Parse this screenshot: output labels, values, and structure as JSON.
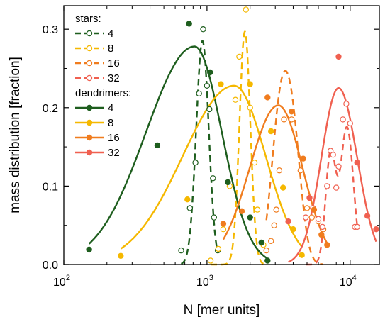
{
  "chart_data": {
    "type": "scatter",
    "xlabel": "N [mer units]",
    "ylabel": "mass distribution [fraction]",
    "xscale": "log",
    "xlim": [
      100,
      16000
    ],
    "ylim": [
      0,
      0.33
    ],
    "x_ticks": [
      {
        "value": 100,
        "base": "10",
        "exp": "2"
      },
      {
        "value": 1000,
        "base": "10",
        "exp": "3"
      },
      {
        "value": 10000,
        "base": "10",
        "exp": "4"
      }
    ],
    "y_ticks": [
      "0.0",
      "0.1",
      "0.2",
      "0.3"
    ],
    "legend": {
      "placement": "top-left",
      "group_titles": [
        "stars:",
        "dendrimers:"
      ]
    },
    "series": [
      {
        "name": "4",
        "group": "stars",
        "color": "#1e5e1e",
        "marker": "open",
        "line": "dashed",
        "points": [
          [
            660,
            0.018
          ],
          [
            760,
            0.072
          ],
          [
            830,
            0.13
          ],
          [
            880,
            0.218
          ],
          [
            940,
            0.3
          ],
          [
            1000,
            0.228
          ],
          [
            1040,
            0.198
          ],
          [
            1100,
            0.11
          ],
          [
            1120,
            0.06
          ],
          [
            1190,
            0.018
          ]
        ]
      },
      {
        "name": "8",
        "group": "stars",
        "color": "#f5b800",
        "marker": "open",
        "line": "dashed",
        "points": [
          [
            1060,
            0.005
          ],
          [
            1200,
            0.02
          ],
          [
            1300,
            0.045
          ],
          [
            1440,
            0.1
          ],
          [
            1580,
            0.21
          ],
          [
            1680,
            0.265
          ],
          [
            1870,
            0.325
          ],
          [
            2000,
            0.2
          ],
          [
            2150,
            0.13
          ],
          [
            2250,
            0.07
          ],
          [
            2480,
            0.025
          ]
        ]
      },
      {
        "name": "16",
        "group": "stars",
        "color": "#f07c1e",
        "marker": "open",
        "line": "dashed",
        "points": [
          [
            2600,
            0.018
          ],
          [
            2800,
            0.03
          ],
          [
            2950,
            0.05
          ],
          [
            3050,
            0.07
          ],
          [
            3200,
            0.12
          ],
          [
            3450,
            0.185
          ],
          [
            3900,
            0.185
          ],
          [
            4500,
            0.12
          ],
          [
            5000,
            0.072
          ],
          [
            5400,
            0.06
          ],
          [
            6000,
            0.055
          ],
          [
            6500,
            0.045
          ]
        ]
      },
      {
        "name": "32",
        "group": "stars",
        "color": "#f06050",
        "marker": "open",
        "line": "dashed",
        "points": [
          [
            4900,
            0.06
          ],
          [
            5500,
            0.072
          ],
          [
            6000,
            0.058
          ],
          [
            6400,
            0.048
          ],
          [
            6900,
            0.1
          ],
          [
            7300,
            0.145
          ],
          [
            7600,
            0.14
          ],
          [
            8000,
            0.098
          ],
          [
            8300,
            0.125
          ],
          [
            8900,
            0.185
          ],
          [
            9400,
            0.205
          ],
          [
            10000,
            0.18
          ],
          [
            10800,
            0.048
          ],
          [
            11200,
            0.048
          ]
        ]
      },
      {
        "name": "4",
        "group": "dendrimers",
        "color": "#1e5e1e",
        "marker": "filled",
        "line": "solid",
        "points": [
          [
            150,
            0.019
          ],
          [
            450,
            0.152
          ],
          [
            750,
            0.307
          ],
          [
            1050,
            0.245
          ],
          [
            1400,
            0.105
          ],
          [
            2000,
            0.06
          ],
          [
            2400,
            0.028
          ],
          [
            2650,
            0.005
          ]
        ]
      },
      {
        "name": "8",
        "group": "dendrimers",
        "color": "#f5b800",
        "marker": "filled",
        "line": "solid",
        "points": [
          [
            250,
            0.011
          ],
          [
            730,
            0.083
          ],
          [
            1250,
            0.23
          ],
          [
            2000,
            0.23
          ],
          [
            2800,
            0.17
          ],
          [
            3400,
            0.098
          ],
          [
            4000,
            0.045
          ],
          [
            4600,
            0.012
          ]
        ]
      },
      {
        "name": "16",
        "group": "dendrimers",
        "color": "#f07c1e",
        "marker": "filled",
        "line": "solid",
        "points": [
          [
            1300,
            0.052
          ],
          [
            1750,
            0.068
          ],
          [
            2650,
            0.213
          ],
          [
            3900,
            0.195
          ],
          [
            4700,
            0.135
          ],
          [
            5600,
            0.07
          ],
          [
            6300,
            0.038
          ],
          [
            6900,
            0.025
          ]
        ]
      },
      {
        "name": "32",
        "group": "dendrimers",
        "color": "#f06050",
        "marker": "filled",
        "line": "solid",
        "points": [
          [
            3700,
            0.055
          ],
          [
            5200,
            0.085
          ],
          [
            8300,
            0.265
          ],
          [
            11200,
            0.13
          ],
          [
            13200,
            0.062
          ],
          [
            15200,
            0.045
          ]
        ]
      }
    ],
    "fits": [
      {
        "group": "stars",
        "series": 0,
        "peak": 930,
        "sigma": 0.044,
        "amp": 0.285
      },
      {
        "group": "stars",
        "series": 1,
        "peak": 1840,
        "sigma": 0.038,
        "amp": 0.297
      },
      {
        "group": "stars",
        "series": 2,
        "peak": 3200,
        "sigma": 0.06,
        "amp": 0.17,
        "peak2": 3950,
        "sigma2": 0.06,
        "amp2": 0.16
      },
      {
        "group": "stars",
        "series": 3,
        "peak": 7300,
        "sigma": 0.035,
        "amp": 0.14,
        "peak2": 9500,
        "sigma2": 0.045,
        "amp2": 0.175
      },
      {
        "group": "dendrimers",
        "series": 4,
        "peak": 820,
        "sigma_left": 0.34,
        "sigma_right": 0.19,
        "amp": 0.278
      },
      {
        "group": "dendrimers",
        "series": 5,
        "peak": 1550,
        "sigma_left": 0.36,
        "sigma_right": 0.22,
        "amp": 0.228
      },
      {
        "group": "dendrimers",
        "series": 6,
        "peak": 3150,
        "sigma_left": 0.2,
        "sigma_right": 0.17,
        "amp": 0.203
      },
      {
        "group": "dendrimers",
        "series": 7,
        "peak": 8300,
        "sigma_left": 0.12,
        "sigma_right": 0.13,
        "amp": 0.225
      }
    ]
  }
}
